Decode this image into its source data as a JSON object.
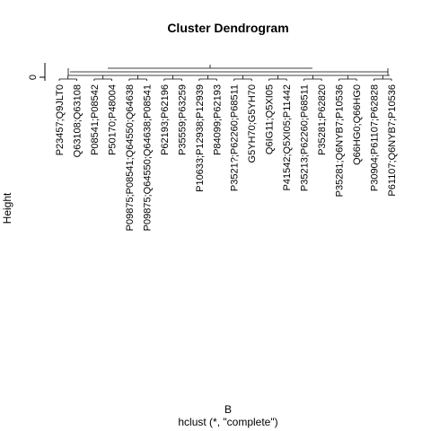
{
  "chart_data": {
    "type": "dendrogram",
    "title": "Cluster Dendrogram",
    "xlabel": "B",
    "sublabel": "hclust (*, \"complete\")",
    "ylabel": "Height",
    "yticks": [
      0
    ],
    "leaf_labels": [
      "P23457;Q9JLT0",
      "Q63108;Q63108",
      "P08541;P08542",
      "P50170;P48004",
      "P09875;P08541;Q64550;Q64638",
      "P09875;Q64550;Q64638;P08541",
      "P62193;P62196",
      "P35559;P63259",
      "P10633;P12938;P12939",
      "P84099;P62193",
      "P3521?;P62260;P68511",
      "G5YH70;G5YH70",
      "Q6IG11;Q5XI05",
      "P41542;Q5XI05;P11442",
      "P35213;P62260;P68511",
      "P35281;P62820",
      "P35281;Q6NYB7;P10536",
      "Q66HG0;Q66HG0",
      "P30904;P61107;P62828",
      "P61107;Q6NYB7;P10536"
    ]
  }
}
